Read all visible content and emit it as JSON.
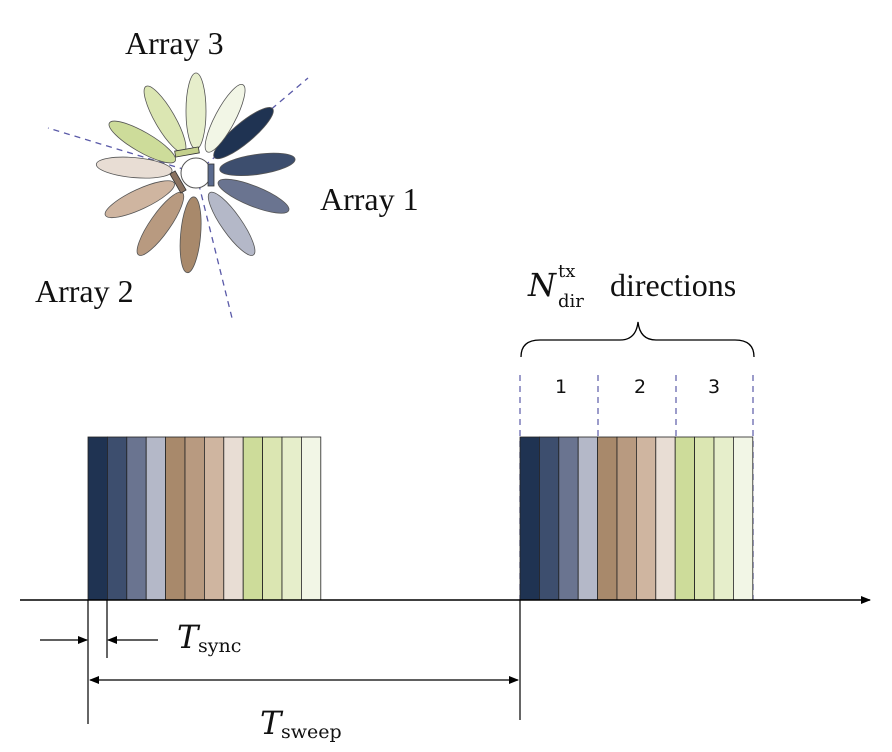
{
  "labels": {
    "array1": "Array 1",
    "array2": "Array 2",
    "array3": "Array 3",
    "directions_word": "directions",
    "n_base": "N",
    "n_sup": "tx",
    "n_sub": "dir",
    "t_base": "T",
    "t_sync_sub": "sync",
    "t_sweep_sub": "sweep",
    "group1": "1",
    "group2": "2",
    "group3": "3"
  },
  "colors": {
    "array1": [
      "#1f3352",
      "#3d4e6e",
      "#6a7490",
      "#b4b8c8"
    ],
    "array2": [
      "#a8896b",
      "#b89a80",
      "#cfb5a0",
      "#e8ddd4"
    ],
    "array3": [
      "#cddc9a",
      "#dbe6b2",
      "#e6eecb",
      "#f2f6e6"
    ],
    "dashed_guides": "#5a5aa8",
    "axis": "#000000"
  },
  "sweep_order": [
    "array1",
    "array2",
    "array3"
  ]
}
